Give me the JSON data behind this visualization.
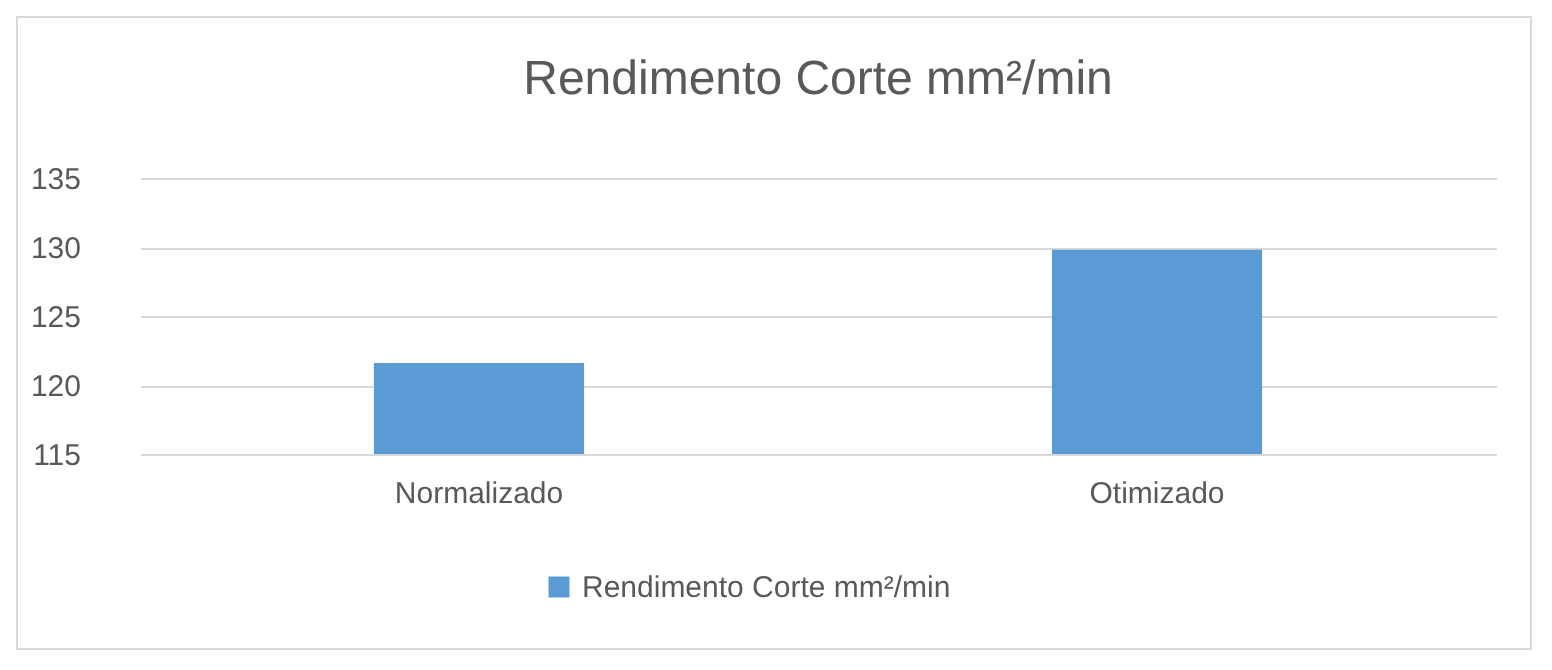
{
  "chart_data": {
    "type": "bar",
    "title": "Rendimento Corte mm²/min",
    "categories": [
      "Normalizado",
      "Otimizado"
    ],
    "series": [
      {
        "name": "Rendimento Corte mm²/min",
        "color": "#5b9bd5",
        "values": [
          121.6,
          129.8
        ]
      }
    ],
    "ylim": [
      115,
      135
    ],
    "yticks": [
      115,
      120,
      125,
      130,
      135
    ],
    "grid": "y",
    "legend": "bottom"
  }
}
